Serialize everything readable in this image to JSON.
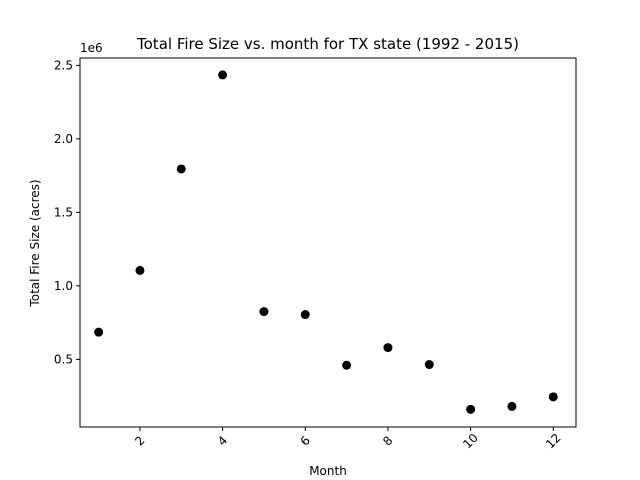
{
  "chart_data": {
    "type": "scatter",
    "title": "Total Fire Size vs. month for TX state (1992 - 2015)",
    "xlabel": "Month",
    "ylabel": "Total Fire Size (acres)",
    "y_offset_text": "1e6",
    "xlim": [
      0.55,
      12.55
    ],
    "ylim": [
      40000,
      2550000
    ],
    "xticks": [
      2,
      4,
      6,
      8,
      10,
      12
    ],
    "xtick_labels": [
      "2",
      "4",
      "6",
      "8",
      "10",
      "12"
    ],
    "xtick_rotation": 45,
    "yticks": [
      500000,
      1000000,
      1500000,
      2000000,
      2500000
    ],
    "ytick_labels": [
      "0.5",
      "1.0",
      "1.5",
      "2.0",
      "2.5"
    ],
    "grid": false,
    "marker_color": "#000000",
    "x": [
      1,
      2,
      3,
      4,
      5,
      6,
      7,
      8,
      9,
      10,
      11,
      12
    ],
    "y": [
      685000,
      1105000,
      1795000,
      2435000,
      825000,
      805000,
      460000,
      580000,
      465000,
      160000,
      180000,
      245000
    ]
  }
}
